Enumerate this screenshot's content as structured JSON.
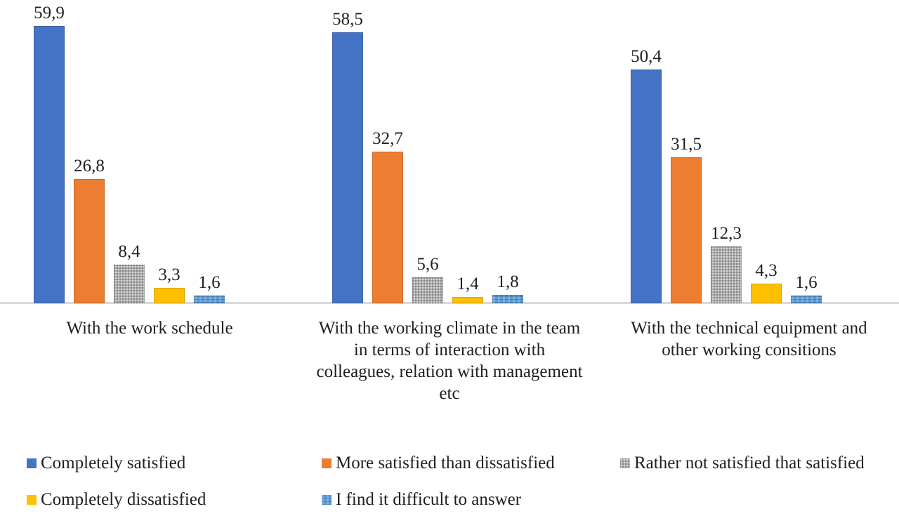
{
  "chart_data": {
    "type": "bar",
    "title": "",
    "xlabel": "",
    "ylabel": "",
    "ylim": [
      0,
      65
    ],
    "grid": false,
    "axis_line_color": "#D9D9D9",
    "text_color": "#1F1F1F",
    "decimal_separator": ",",
    "legend_position": "bottom",
    "categories": [
      "With the work schedule",
      "With the working climate in the team in terms of interaction with colleagues, relation with management etc",
      "With the technical equipment and other working consitions"
    ],
    "series": [
      {
        "name": "Completely satisfied",
        "color": "#4472C4",
        "pattern": "solid",
        "values": [
          59.9,
          58.5,
          50.4
        ]
      },
      {
        "name": "More satisfied than dissatisfied",
        "color": "#ED7D31",
        "pattern": "solid",
        "values": [
          26.8,
          32.7,
          31.5
        ]
      },
      {
        "name": "Rather not satisfied that satisfied",
        "color": "#ACACAC",
        "pattern": "dots",
        "values": [
          8.4,
          5.6,
          12.3
        ]
      },
      {
        "name": "Completely dissatisfied",
        "color": "#FFC000",
        "pattern": "solid",
        "values": [
          3.3,
          1.4,
          4.3
        ]
      },
      {
        "name": "I find it difficult to answer",
        "color": "#5B9BD5",
        "pattern": "dashes",
        "values": [
          1.6,
          1.8,
          1.6
        ]
      }
    ],
    "value_labels": [
      [
        "59,9",
        "26,8",
        "8,4",
        "3,3",
        "1,6"
      ],
      [
        "58,5",
        "32,7",
        "5,6",
        "1,4",
        "1,8"
      ],
      [
        "50,4",
        "31,5",
        "12,3",
        "4,3",
        "1,6"
      ]
    ]
  }
}
